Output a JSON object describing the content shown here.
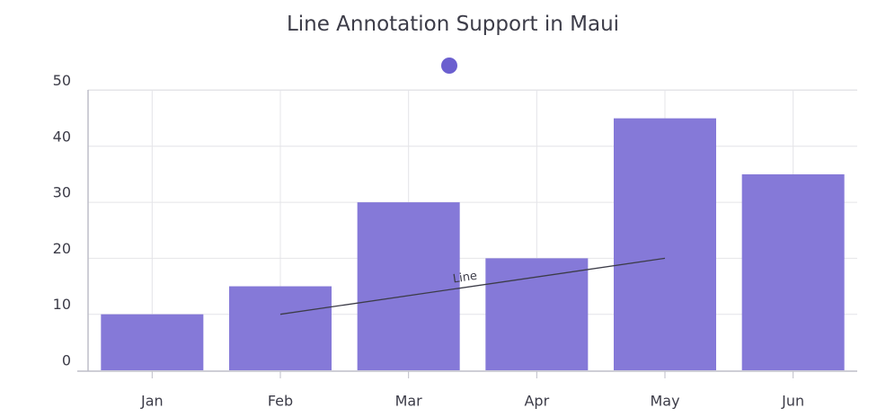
{
  "chart_data": {
    "type": "bar",
    "title": "Line Annotation Support in Maui",
    "categories": [
      "Jan",
      "Feb",
      "Mar",
      "Apr",
      "May",
      "Jun"
    ],
    "values": [
      10,
      15,
      30,
      20,
      45,
      35
    ],
    "ylim": [
      0,
      50
    ],
    "yticks": [
      0,
      10,
      20,
      30,
      40,
      50
    ],
    "xlabel": "",
    "ylabel": "",
    "grid": true,
    "legend": {
      "placement": "top-center",
      "entries": [
        ""
      ]
    },
    "annotations": [
      {
        "type": "line",
        "text": "Line",
        "x1": "Feb",
        "y1": 10,
        "x2": "May",
        "y2": 20
      }
    ]
  },
  "colors": {
    "bar": "#8579d8",
    "legend_marker": "#6b5fcf",
    "grid": "#e4e4e8",
    "axis": "#bdbdc8",
    "annotation": "#3c3c48"
  }
}
